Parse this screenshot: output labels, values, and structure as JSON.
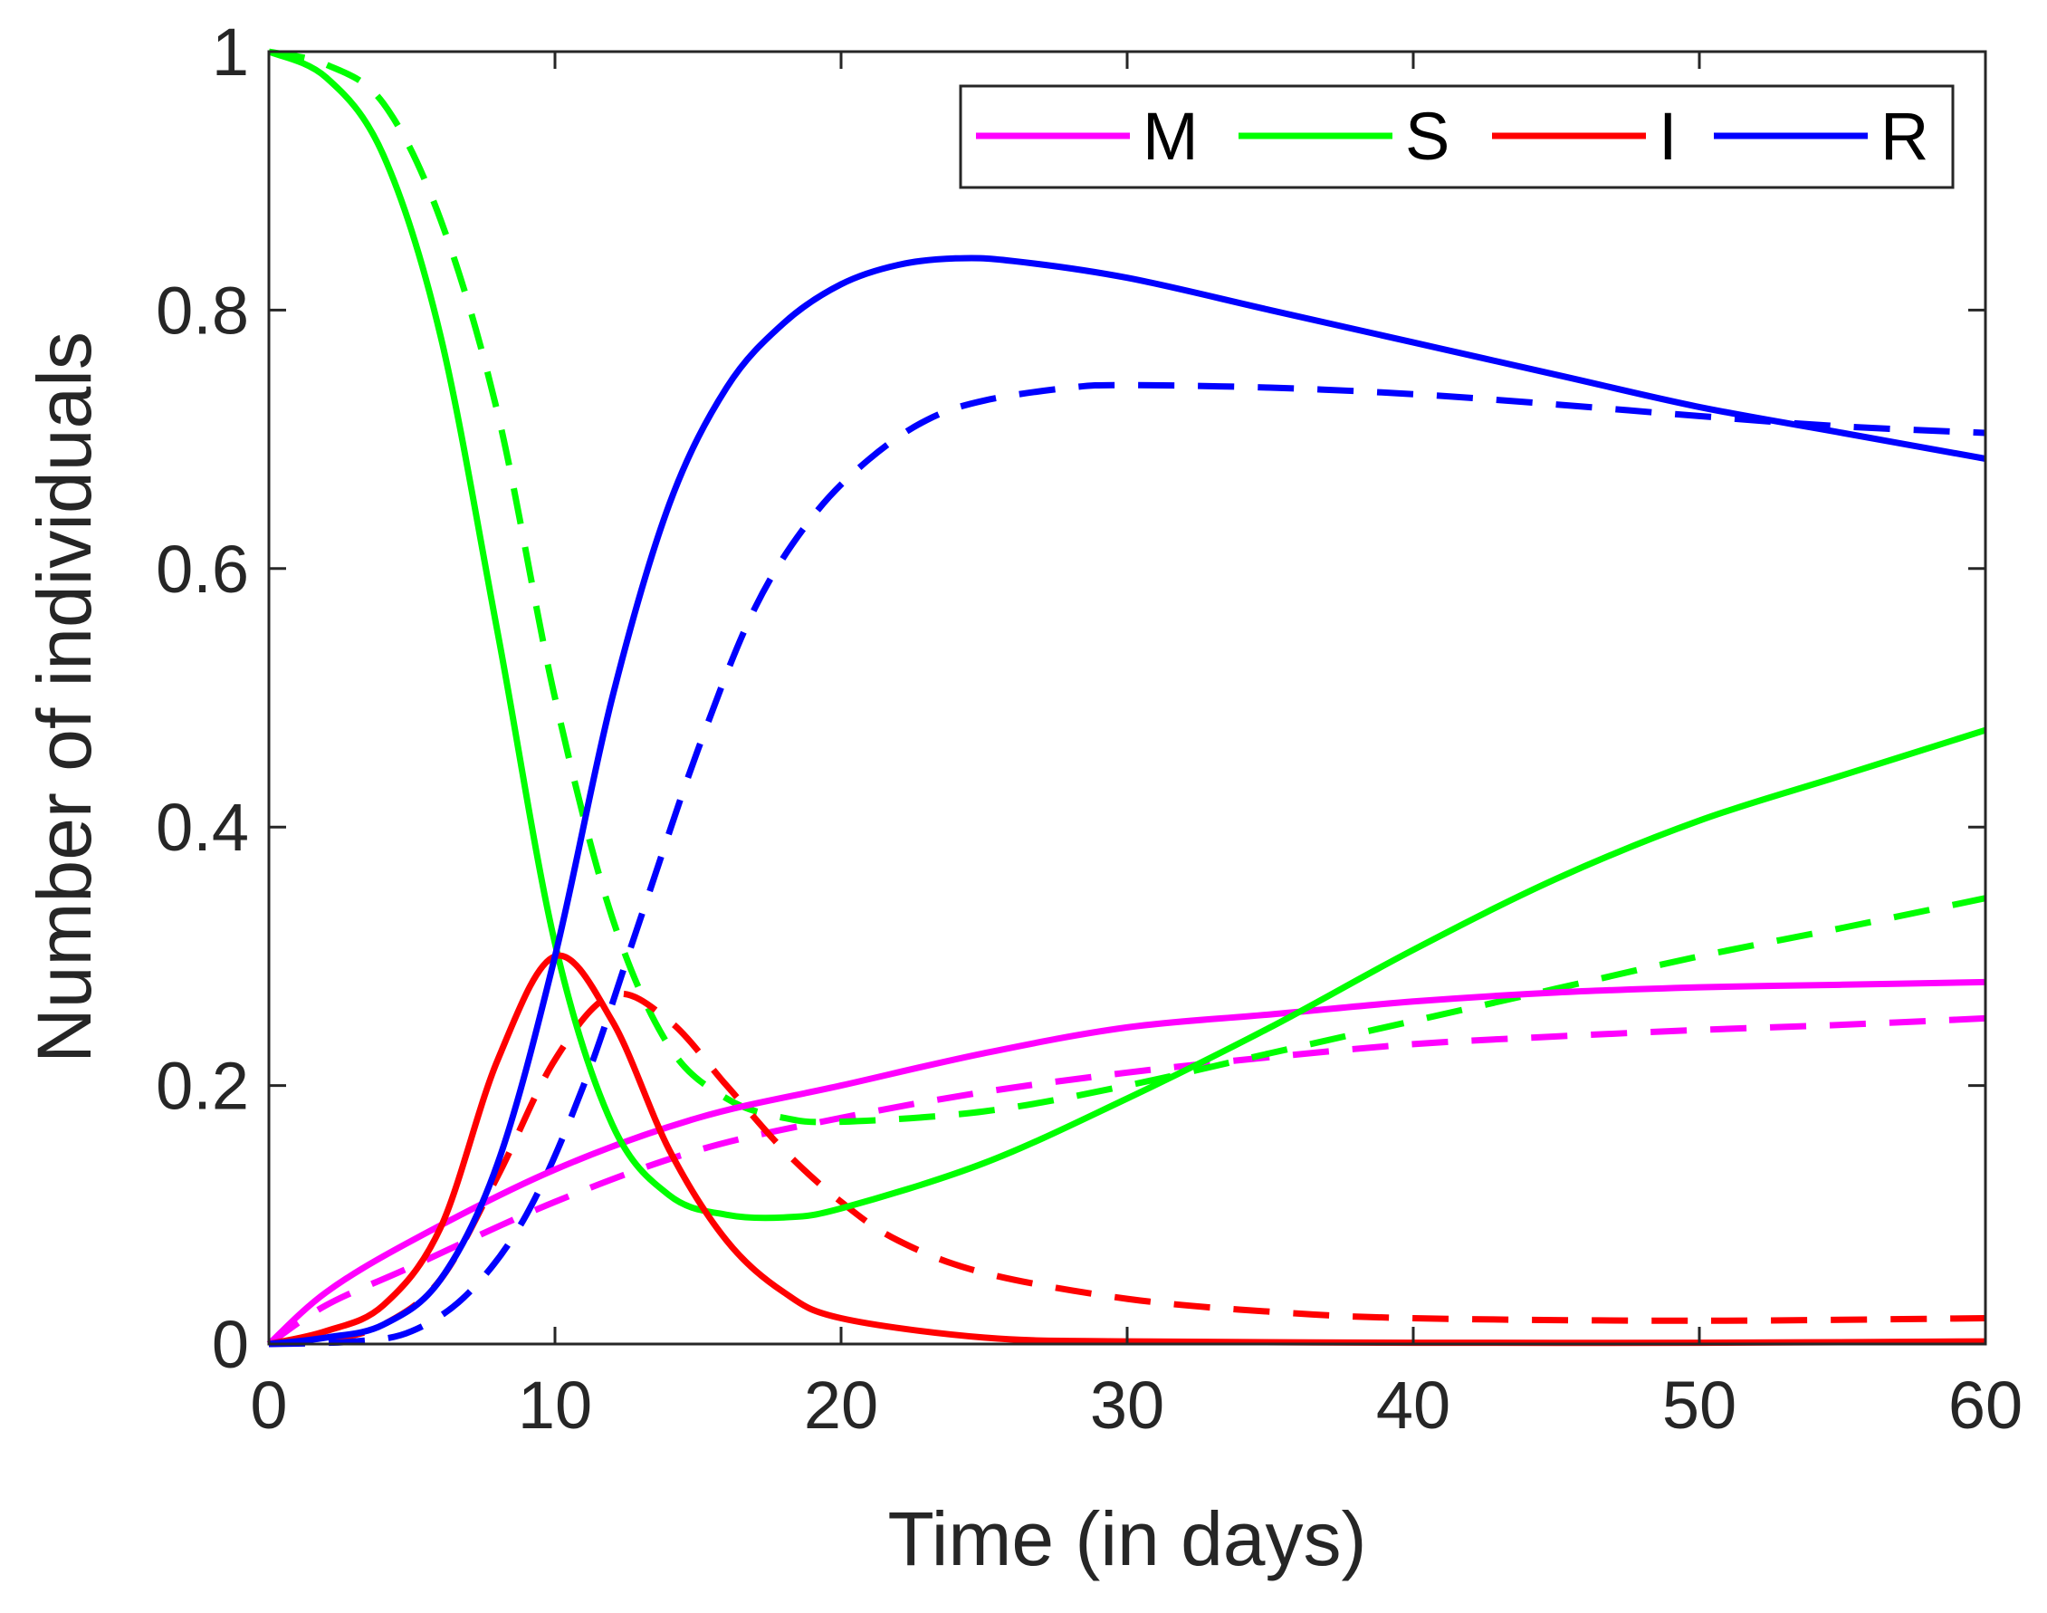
{
  "chart_data": {
    "type": "line",
    "xlabel": "Time (in days)",
    "ylabel": "Number of individuals",
    "xlim": [
      0,
      60
    ],
    "ylim": [
      0,
      1
    ],
    "xticks": [
      0,
      10,
      20,
      30,
      40,
      50,
      60
    ],
    "yticks": [
      0,
      0.2,
      0.4,
      0.6,
      0.8,
      1
    ],
    "ytick_labels": [
      "0",
      "0.2",
      "0.4",
      "0.6",
      "0.8",
      "1"
    ],
    "grid": false,
    "legend_position": "top-right",
    "legend": [
      {
        "label": "M",
        "color": "#ff00ff"
      },
      {
        "label": "S",
        "color": "#00ff00"
      },
      {
        "label": "I",
        "color": "#ff0000"
      },
      {
        "label": "R",
        "color": "#0000ff"
      }
    ],
    "series": [
      {
        "name": "M",
        "style": "solid",
        "color": "#ff00ff",
        "x": [
          0,
          2,
          5,
          10,
          15,
          20,
          25,
          30,
          35,
          40,
          45,
          50,
          55,
          60
        ],
        "y": [
          0,
          0.04,
          0.08,
          0.135,
          0.175,
          0.2,
          0.225,
          0.245,
          0.255,
          0.265,
          0.272,
          0.276,
          0.278,
          0.28
        ]
      },
      {
        "name": "S",
        "style": "solid",
        "color": "#00ff00",
        "x": [
          0,
          2,
          4,
          6,
          8,
          10,
          12,
          14,
          16,
          18,
          20,
          25,
          30,
          35,
          40,
          45,
          50,
          55,
          60
        ],
        "y": [
          1,
          0.98,
          0.92,
          0.78,
          0.55,
          0.31,
          0.17,
          0.115,
          0.1,
          0.098,
          0.105,
          0.14,
          0.19,
          0.245,
          0.305,
          0.36,
          0.405,
          0.44,
          0.475
        ]
      },
      {
        "name": "I",
        "style": "solid",
        "color": "#ff0000",
        "x": [
          0,
          2,
          4,
          6,
          8,
          10,
          12,
          14,
          16,
          18,
          20,
          25,
          30,
          40,
          50,
          60
        ],
        "y": [
          0,
          0.01,
          0.03,
          0.09,
          0.22,
          0.3,
          0.25,
          0.15,
          0.08,
          0.04,
          0.02,
          0.005,
          0.002,
          0.001,
          0.001,
          0.002
        ]
      },
      {
        "name": "R",
        "style": "solid",
        "color": "#0000ff",
        "x": [
          0,
          2,
          4,
          6,
          8,
          10,
          12,
          14,
          16,
          18,
          20,
          22,
          24,
          26,
          30,
          35,
          40,
          45,
          50,
          55,
          60
        ],
        "y": [
          0,
          0.005,
          0.015,
          0.05,
          0.14,
          0.3,
          0.5,
          0.65,
          0.74,
          0.79,
          0.82,
          0.835,
          0.84,
          0.838,
          0.825,
          0.8,
          0.775,
          0.75,
          0.725,
          0.705,
          0.685
        ]
      },
      {
        "name": "M (dashed)",
        "style": "dashed",
        "color": "#ff00ff",
        "x": [
          0,
          2,
          5,
          10,
          15,
          20,
          25,
          30,
          35,
          40,
          45,
          50,
          55,
          60
        ],
        "y": [
          0,
          0.03,
          0.06,
          0.11,
          0.15,
          0.175,
          0.195,
          0.21,
          0.222,
          0.232,
          0.238,
          0.243,
          0.247,
          0.252
        ]
      },
      {
        "name": "S (dashed)",
        "style": "dashed",
        "color": "#00ff00",
        "x": [
          0,
          2,
          4,
          6,
          8,
          10,
          12,
          14,
          16,
          18,
          20,
          25,
          30,
          35,
          40,
          45,
          50,
          55,
          60
        ],
        "y": [
          1,
          0.99,
          0.96,
          0.87,
          0.72,
          0.5,
          0.33,
          0.23,
          0.19,
          0.175,
          0.172,
          0.18,
          0.2,
          0.225,
          0.25,
          0.275,
          0.3,
          0.322,
          0.345
        ]
      },
      {
        "name": "I (dashed)",
        "style": "dashed",
        "color": "#ff0000",
        "x": [
          0,
          2,
          4,
          6,
          8,
          10,
          12,
          14,
          16,
          18,
          20,
          22,
          25,
          30,
          35,
          40,
          50,
          60
        ],
        "y": [
          0,
          0.003,
          0.015,
          0.05,
          0.13,
          0.22,
          0.27,
          0.25,
          0.2,
          0.15,
          0.11,
          0.08,
          0.055,
          0.035,
          0.025,
          0.02,
          0.018,
          0.02
        ]
      },
      {
        "name": "R (dashed)",
        "style": "dashed",
        "color": "#0000ff",
        "x": [
          0,
          3,
          5,
          7,
          9,
          11,
          13,
          15,
          17,
          19,
          21,
          23,
          25,
          28,
          30,
          35,
          40,
          45,
          50,
          55,
          60
        ],
        "y": [
          0,
          0.002,
          0.01,
          0.04,
          0.1,
          0.2,
          0.33,
          0.46,
          0.57,
          0.64,
          0.685,
          0.715,
          0.73,
          0.74,
          0.742,
          0.74,
          0.735,
          0.727,
          0.718,
          0.71,
          0.705
        ]
      }
    ]
  }
}
